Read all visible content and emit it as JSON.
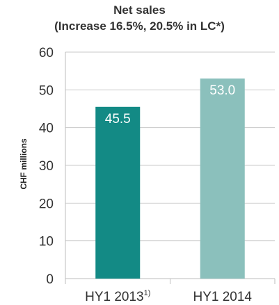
{
  "chart_data": {
    "type": "bar",
    "title": "Net sales",
    "subtitle": "(Increase 16.5%, 20.5% in LC*)",
    "ylabel": "CHF millions",
    "xlabel": "",
    "categories": [
      {
        "label": "HY1 2013",
        "superscript": "1)"
      },
      {
        "label": "HY1 2014",
        "superscript": ""
      }
    ],
    "values": [
      45.5,
      53.0
    ],
    "value_labels": [
      "45.5",
      "53.0"
    ],
    "ylim": [
      0,
      60
    ],
    "yticks": [
      0,
      10,
      20,
      30,
      40,
      50,
      60
    ],
    "grid": true,
    "legend": "none",
    "colors": [
      "#138a85",
      "#8bc0bc"
    ],
    "value_label_color": "#ffffff",
    "grid_color": "#c8c8c8",
    "axis_color": "#bdbdbd",
    "tick_label_color": "#333333"
  }
}
